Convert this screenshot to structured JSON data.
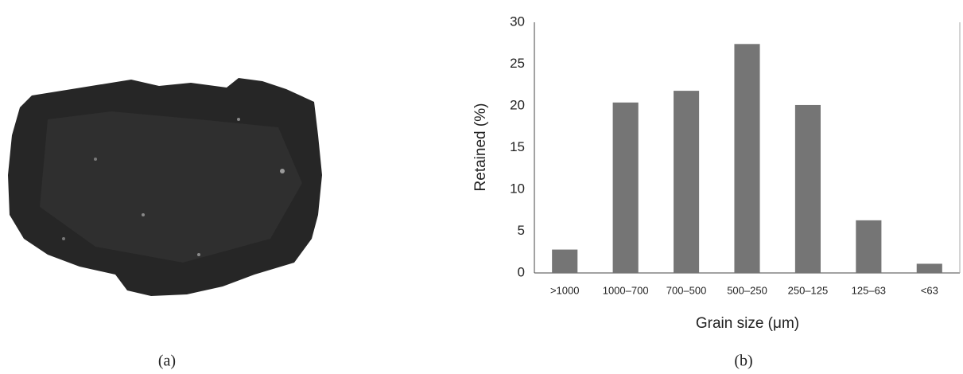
{
  "chart_data": {
    "type": "bar",
    "categories": [
      ">1000",
      "1000–700",
      "700–500",
      "500–250",
      "250–125",
      "125–63",
      "<63"
    ],
    "values": [
      2.8,
      20.4,
      21.8,
      27.4,
      20.1,
      6.3,
      1.1
    ],
    "color": "#757575",
    "ylim": [
      0,
      30
    ],
    "yticks": [
      0,
      5,
      10,
      15,
      20,
      25,
      30
    ],
    "grid": false,
    "xlabel": "Grain size (μm)",
    "ylabel": "Retained (%)"
  },
  "panel_labels": [
    "(a)",
    "(b)"
  ]
}
